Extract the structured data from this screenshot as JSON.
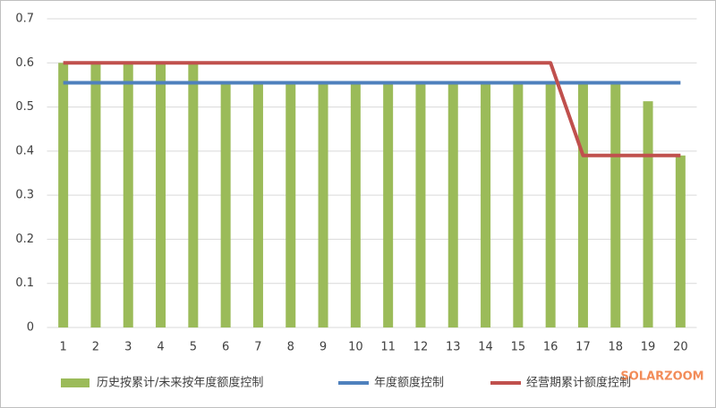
{
  "chart_data": {
    "type": "bar",
    "categories": [
      "1",
      "2",
      "3",
      "4",
      "5",
      "6",
      "7",
      "8",
      "9",
      "10",
      "11",
      "12",
      "13",
      "14",
      "15",
      "16",
      "17",
      "18",
      "19",
      "20"
    ],
    "series": [
      {
        "name": "历史按累计/未来按年度额度控制",
        "type": "bar",
        "color": "#9bbb59",
        "values": [
          0.6,
          0.6,
          0.6,
          0.6,
          0.6,
          0.555,
          0.555,
          0.555,
          0.555,
          0.555,
          0.555,
          0.555,
          0.555,
          0.555,
          0.555,
          0.555,
          0.555,
          0.555,
          0.513,
          0.39
        ]
      },
      {
        "name": "年度额度控制",
        "type": "line",
        "color": "#4f81bd",
        "values": [
          0.555,
          0.555,
          0.555,
          0.555,
          0.555,
          0.555,
          0.555,
          0.555,
          0.555,
          0.555,
          0.555,
          0.555,
          0.555,
          0.555,
          0.555,
          0.555,
          0.555,
          0.555,
          0.555,
          0.555
        ]
      },
      {
        "name": "经营期累计额度控制",
        "type": "line",
        "color": "#c0504d",
        "values": [
          0.6,
          0.6,
          0.6,
          0.6,
          0.6,
          0.6,
          0.6,
          0.6,
          0.6,
          0.6,
          0.6,
          0.6,
          0.6,
          0.6,
          0.6,
          0.6,
          0.39,
          0.39,
          0.39,
          0.39
        ]
      }
    ],
    "ylim": [
      0,
      0.7
    ],
    "yticks": [
      0,
      {
        "value": 0.1,
        "label": "0.1"
      },
      {
        "value": 0.2,
        "label": "0.2"
      },
      {
        "value": 0.3,
        "label": "0.3"
      },
      {
        "value": 0.4,
        "label": "0.4"
      },
      {
        "value": 0.5,
        "label": "0.5"
      },
      {
        "value": 0.6,
        "label": "0.6"
      },
      {
        "value": 0.7,
        "label": "0.7"
      }
    ],
    "grid": true,
    "legend": "bottom",
    "watermark": "SOLARZOOM"
  }
}
